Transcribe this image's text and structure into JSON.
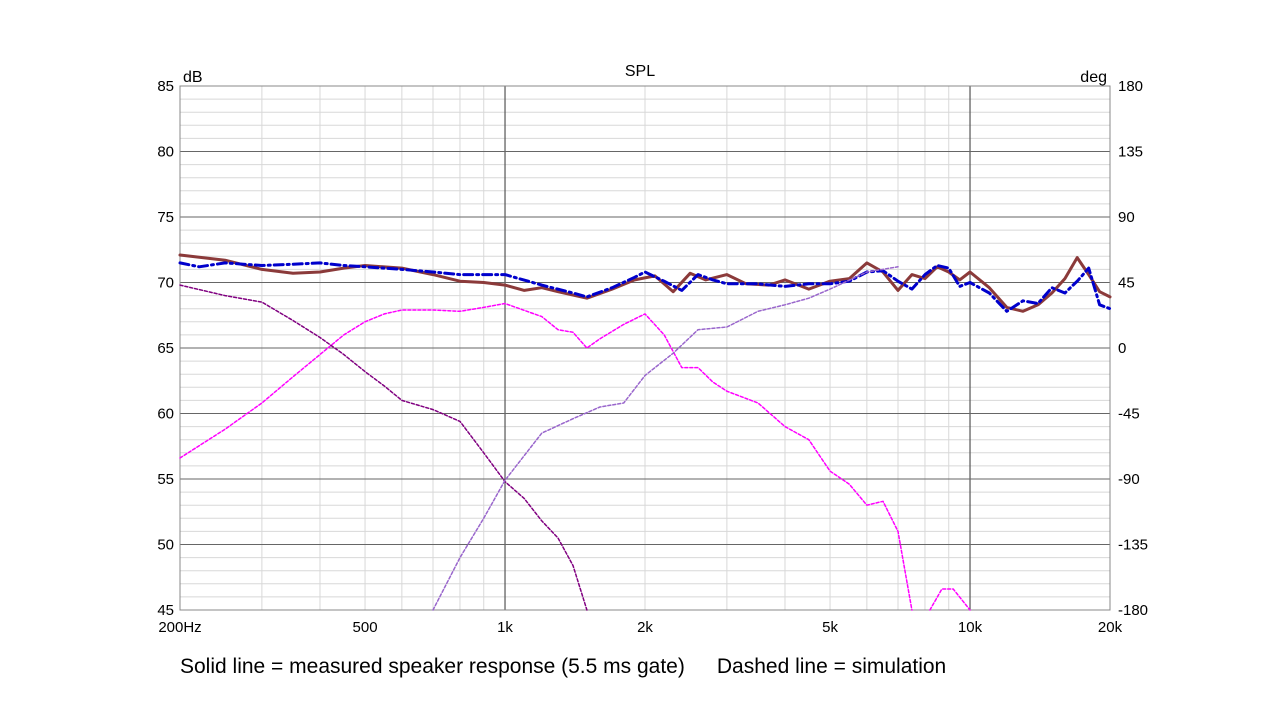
{
  "chart_data": {
    "type": "line",
    "title": "SPL",
    "ylabel_left": "dB",
    "ylabel_right": "deg",
    "x_scale": "log",
    "xlim": [
      200,
      20000
    ],
    "ylim_left": [
      45,
      85
    ],
    "ylim_right": [
      -180,
      180
    ],
    "grid": true,
    "x_ticks": [
      {
        "value": 200,
        "label": "200Hz"
      },
      {
        "value": 500,
        "label": "500"
      },
      {
        "value": 1000,
        "label": "1k"
      },
      {
        "value": 2000,
        "label": "2k"
      },
      {
        "value": 5000,
        "label": "5k"
      },
      {
        "value": 10000,
        "label": "10k"
      },
      {
        "value": 20000,
        "label": "20k"
      }
    ],
    "y_ticks_left": [
      "85",
      "80",
      "75",
      "70",
      "65",
      "60",
      "55",
      "50",
      "45"
    ],
    "y_ticks_right": [
      "180",
      "135",
      "90",
      "45",
      "0",
      "-45",
      "-90",
      "-135",
      "-180"
    ],
    "series": [
      {
        "color": "#8b3a3a",
        "style": "solid",
        "width": 3,
        "points": [
          [
            200,
            72.1
          ],
          [
            250,
            71.7
          ],
          [
            300,
            71.0
          ],
          [
            350,
            70.7
          ],
          [
            400,
            70.8
          ],
          [
            450,
            71.1
          ],
          [
            500,
            71.3
          ],
          [
            600,
            71.1
          ],
          [
            700,
            70.6
          ],
          [
            800,
            70.1
          ],
          [
            900,
            70.0
          ],
          [
            1000,
            69.8
          ],
          [
            1100,
            69.4
          ],
          [
            1200,
            69.6
          ],
          [
            1300,
            69.3
          ],
          [
            1500,
            68.8
          ],
          [
            1700,
            69.5
          ],
          [
            1900,
            70.2
          ],
          [
            2100,
            70.5
          ],
          [
            2300,
            69.3
          ],
          [
            2500,
            70.7
          ],
          [
            2700,
            70.2
          ],
          [
            3000,
            70.6
          ],
          [
            3300,
            69.9
          ],
          [
            3700,
            69.8
          ],
          [
            4000,
            70.2
          ],
          [
            4500,
            69.5
          ],
          [
            5000,
            70.1
          ],
          [
            5500,
            70.3
          ],
          [
            6000,
            71.5
          ],
          [
            6500,
            70.8
          ],
          [
            7000,
            69.4
          ],
          [
            7500,
            70.6
          ],
          [
            8000,
            70.3
          ],
          [
            8500,
            71.2
          ],
          [
            9000,
            70.8
          ],
          [
            9500,
            70.2
          ],
          [
            10000,
            70.8
          ],
          [
            11000,
            69.6
          ],
          [
            12000,
            68.1
          ],
          [
            13000,
            67.8
          ],
          [
            14000,
            68.3
          ],
          [
            15000,
            69.2
          ],
          [
            16000,
            70.3
          ],
          [
            17000,
            71.9
          ],
          [
            18000,
            70.6
          ],
          [
            19000,
            69.3
          ],
          [
            20000,
            68.9
          ]
        ]
      },
      {
        "color": "#0000cc",
        "style": "dashdot",
        "width": 3,
        "points": [
          [
            200,
            71.5
          ],
          [
            220,
            71.2
          ],
          [
            250,
            71.5
          ],
          [
            300,
            71.3
          ],
          [
            350,
            71.4
          ],
          [
            400,
            71.5
          ],
          [
            450,
            71.3
          ],
          [
            500,
            71.2
          ],
          [
            600,
            71.0
          ],
          [
            700,
            70.8
          ],
          [
            800,
            70.6
          ],
          [
            900,
            70.6
          ],
          [
            1000,
            70.6
          ],
          [
            1200,
            69.8
          ],
          [
            1400,
            69.2
          ],
          [
            1500,
            68.9
          ],
          [
            1700,
            69.6
          ],
          [
            1900,
            70.4
          ],
          [
            2000,
            70.8
          ],
          [
            2200,
            70.1
          ],
          [
            2400,
            69.4
          ],
          [
            2600,
            70.6
          ],
          [
            2800,
            70.2
          ],
          [
            3000,
            69.9
          ],
          [
            3500,
            69.9
          ],
          [
            4000,
            69.7
          ],
          [
            4500,
            69.9
          ],
          [
            5000,
            69.9
          ],
          [
            5500,
            70.1
          ],
          [
            6000,
            70.8
          ],
          [
            6500,
            70.9
          ],
          [
            7000,
            70.1
          ],
          [
            7500,
            69.5
          ],
          [
            8000,
            70.6
          ],
          [
            8500,
            71.3
          ],
          [
            9000,
            71.1
          ],
          [
            9500,
            69.7
          ],
          [
            10000,
            70.0
          ],
          [
            11000,
            69.2
          ],
          [
            12000,
            67.8
          ],
          [
            13000,
            68.6
          ],
          [
            14000,
            68.4
          ],
          [
            15000,
            69.6
          ],
          [
            16000,
            69.2
          ],
          [
            17000,
            70.1
          ],
          [
            18000,
            71.1
          ],
          [
            19000,
            68.3
          ],
          [
            20000,
            68.0
          ]
        ]
      },
      {
        "color": "#ff00ff",
        "style": "dashed",
        "width": 1.5,
        "points": [
          [
            200,
            56.6
          ],
          [
            250,
            58.8
          ],
          [
            300,
            60.8
          ],
          [
            350,
            62.8
          ],
          [
            400,
            64.5
          ],
          [
            450,
            66.0
          ],
          [
            500,
            67.0
          ],
          [
            550,
            67.6
          ],
          [
            600,
            67.9
          ],
          [
            700,
            67.9
          ],
          [
            800,
            67.8
          ],
          [
            900,
            68.1
          ],
          [
            1000,
            68.4
          ],
          [
            1200,
            67.4
          ],
          [
            1300,
            66.4
          ],
          [
            1400,
            66.2
          ],
          [
            1500,
            65.0
          ],
          [
            1600,
            65.7
          ],
          [
            1800,
            66.8
          ],
          [
            2000,
            67.6
          ],
          [
            2200,
            66.0
          ],
          [
            2400,
            63.5
          ],
          [
            2600,
            63.5
          ],
          [
            2800,
            62.4
          ],
          [
            3000,
            61.7
          ],
          [
            3500,
            60.8
          ],
          [
            4000,
            59.0
          ],
          [
            4500,
            58.0
          ],
          [
            5000,
            55.6
          ],
          [
            5500,
            54.6
          ],
          [
            6000,
            53.0
          ],
          [
            6500,
            53.3
          ],
          [
            7000,
            51.0
          ],
          [
            7500,
            45.0
          ]
        ]
      },
      {
        "color": "#ff00ff",
        "style": "dashed",
        "width": 1.5,
        "points": [
          [
            8200,
            45.0
          ],
          [
            8700,
            46.6
          ],
          [
            9200,
            46.6
          ],
          [
            10000,
            45.0
          ]
        ]
      },
      {
        "color": "#800080",
        "style": "dashed",
        "width": 1.5,
        "points": [
          [
            200,
            69.8
          ],
          [
            250,
            69.0
          ],
          [
            300,
            68.5
          ],
          [
            350,
            67.1
          ],
          [
            400,
            65.8
          ],
          [
            450,
            64.5
          ],
          [
            500,
            63.2
          ],
          [
            550,
            62.1
          ],
          [
            600,
            61.0
          ],
          [
            700,
            60.3
          ],
          [
            800,
            59.4
          ],
          [
            900,
            57.0
          ],
          [
            1000,
            54.8
          ],
          [
            1100,
            53.5
          ],
          [
            1200,
            51.8
          ],
          [
            1300,
            50.5
          ],
          [
            1400,
            48.4
          ],
          [
            1500,
            45.0
          ]
        ]
      },
      {
        "color": "#9966cc",
        "style": "dashed",
        "width": 1.5,
        "points": [
          [
            700,
            45.0
          ],
          [
            800,
            49.0
          ],
          [
            900,
            52.0
          ],
          [
            1000,
            54.9
          ],
          [
            1200,
            58.5
          ],
          [
            1400,
            59.6
          ],
          [
            1600,
            60.5
          ],
          [
            1800,
            60.8
          ],
          [
            2000,
            62.9
          ],
          [
            2300,
            64.6
          ],
          [
            2600,
            66.4
          ],
          [
            3000,
            66.6
          ],
          [
            3500,
            67.8
          ],
          [
            4000,
            68.3
          ],
          [
            4500,
            68.8
          ],
          [
            5000,
            69.5
          ],
          [
            6000,
            70.8
          ],
          [
            7000,
            71.2
          ]
        ]
      }
    ]
  },
  "caption": {
    "left": "Solid line = measured speaker response (5.5 ms gate)",
    "right": "Dashed line = simulation"
  }
}
